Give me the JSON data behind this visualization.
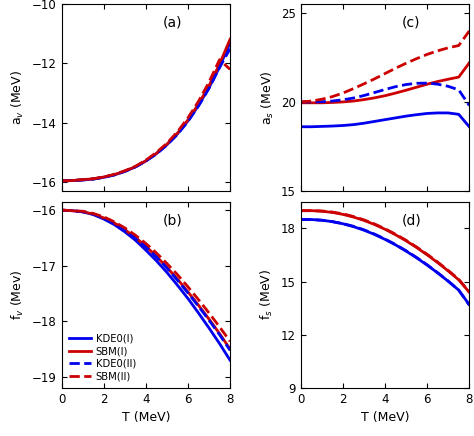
{
  "T": [
    0,
    0.5,
    1,
    1.5,
    2,
    2.5,
    3,
    3.5,
    4,
    4.5,
    5,
    5.5,
    6,
    6.5,
    7,
    7.5,
    8
  ],
  "av_KDE0I": [
    -15.97,
    -15.96,
    -15.94,
    -15.91,
    -15.85,
    -15.77,
    -15.65,
    -15.5,
    -15.3,
    -15.05,
    -14.75,
    -14.38,
    -13.94,
    -13.42,
    -12.82,
    -12.12,
    -11.3
  ],
  "av_SBMI": [
    -15.97,
    -15.96,
    -15.93,
    -15.9,
    -15.84,
    -15.76,
    -15.64,
    -15.49,
    -15.29,
    -15.04,
    -14.73,
    -14.36,
    -13.91,
    -13.37,
    -12.75,
    -12.02,
    -11.18
  ],
  "av_KDE0II": [
    -15.97,
    -15.96,
    -15.94,
    -15.91,
    -15.85,
    -15.77,
    -15.65,
    -15.5,
    -15.3,
    -15.06,
    -14.76,
    -14.4,
    -13.96,
    -13.44,
    -12.84,
    -12.14,
    -11.5
  ],
  "av_SBMII": [
    -15.97,
    -15.96,
    -15.93,
    -15.9,
    -15.84,
    -15.75,
    -15.63,
    -15.48,
    -15.27,
    -15.01,
    -14.7,
    -14.31,
    -13.84,
    -13.28,
    -12.63,
    -11.87,
    -12.2
  ],
  "fv_KDE0I": [
    -16.0,
    -16.01,
    -16.03,
    -16.08,
    -16.16,
    -16.26,
    -16.39,
    -16.54,
    -16.72,
    -16.91,
    -17.12,
    -17.35,
    -17.59,
    -17.85,
    -18.12,
    -18.4,
    -18.7
  ],
  "fv_SBMI": [
    -16.0,
    -16.01,
    -16.03,
    -16.07,
    -16.14,
    -16.23,
    -16.35,
    -16.49,
    -16.65,
    -16.83,
    -17.03,
    -17.24,
    -17.47,
    -17.71,
    -17.96,
    -18.22,
    -18.5
  ],
  "fv_KDE0II": [
    -16.0,
    -16.01,
    -16.03,
    -16.07,
    -16.14,
    -16.24,
    -16.36,
    -16.5,
    -16.66,
    -16.84,
    -17.04,
    -17.26,
    -17.49,
    -17.73,
    -17.98,
    -18.24,
    -18.52
  ],
  "fv_SBMII": [
    -16.0,
    -16.01,
    -16.02,
    -16.06,
    -16.12,
    -16.21,
    -16.32,
    -16.45,
    -16.6,
    -16.77,
    -16.96,
    -17.16,
    -17.38,
    -17.61,
    -17.85,
    -18.1,
    -18.36
  ],
  "as_KDE0I": [
    18.6,
    18.6,
    18.62,
    18.64,
    18.67,
    18.72,
    18.8,
    18.9,
    19.0,
    19.1,
    19.2,
    19.28,
    19.35,
    19.38,
    19.38,
    19.3,
    18.6
  ],
  "as_SBMI": [
    19.95,
    19.95,
    19.95,
    19.97,
    20.0,
    20.05,
    20.13,
    20.23,
    20.35,
    20.5,
    20.66,
    20.83,
    21.0,
    21.15,
    21.28,
    21.4,
    22.2
  ],
  "as_KDE0II": [
    20.0,
    20.0,
    20.01,
    20.05,
    20.12,
    20.22,
    20.36,
    20.53,
    20.7,
    20.86,
    20.98,
    21.05,
    21.06,
    21.0,
    20.88,
    20.68,
    19.8
  ],
  "as_SBMII": [
    20.0,
    20.05,
    20.15,
    20.3,
    20.5,
    20.75,
    21.02,
    21.3,
    21.6,
    21.9,
    22.18,
    22.44,
    22.68,
    22.88,
    23.05,
    23.18,
    24.0
  ],
  "fs_KDE0I": [
    18.5,
    18.5,
    18.46,
    18.38,
    18.26,
    18.1,
    17.9,
    17.66,
    17.38,
    17.07,
    16.72,
    16.34,
    15.93,
    15.49,
    15.02,
    14.52,
    13.7
  ],
  "fs_SBMI": [
    19.0,
    19.0,
    18.97,
    18.9,
    18.79,
    18.64,
    18.45,
    18.22,
    17.95,
    17.64,
    17.3,
    16.92,
    16.51,
    16.07,
    15.6,
    15.1,
    14.4
  ],
  "fs_KDE0II": [
    18.5,
    18.5,
    18.46,
    18.38,
    18.27,
    18.12,
    17.92,
    17.68,
    17.4,
    17.09,
    16.74,
    16.36,
    15.95,
    15.5,
    15.03,
    14.52,
    13.68
  ],
  "fs_SBMII": [
    19.0,
    19.0,
    18.98,
    18.92,
    18.82,
    18.67,
    18.48,
    18.25,
    17.98,
    17.67,
    17.33,
    16.95,
    16.54,
    16.1,
    15.63,
    15.13,
    14.42
  ],
  "colors": {
    "KDE0": "#0000ee",
    "SBM": "#cc0000"
  },
  "legend_labels": [
    "KDE0(I)",
    "SBM(I)",
    "KDE0(II)",
    "SBM(II)"
  ],
  "panel_labels": [
    "(a)",
    "(b)",
    "(c)",
    "(d)"
  ],
  "ylabels_a": "a$_v$ (MeV)",
  "ylabels_b": "f$_v$ (Mev)",
  "ylabels_c": "a$_s$ (MeV)",
  "ylabels_d": "f$_s$ (MeV)",
  "xlim": [
    0,
    8
  ],
  "av_ylim": [
    -16.3,
    -10.0
  ],
  "fv_ylim": [
    -19.2,
    -15.85
  ],
  "as_ylim": [
    15.0,
    25.5
  ],
  "fs_ylim": [
    9.0,
    19.5
  ],
  "av_yticks": [
    -16,
    -14,
    -12,
    -10
  ],
  "fv_yticks": [
    -19,
    -18,
    -17,
    -16
  ],
  "as_yticks": [
    15,
    20,
    25
  ],
  "fs_yticks": [
    9,
    12,
    15,
    18
  ],
  "xticks": [
    0,
    2,
    4,
    6,
    8
  ]
}
